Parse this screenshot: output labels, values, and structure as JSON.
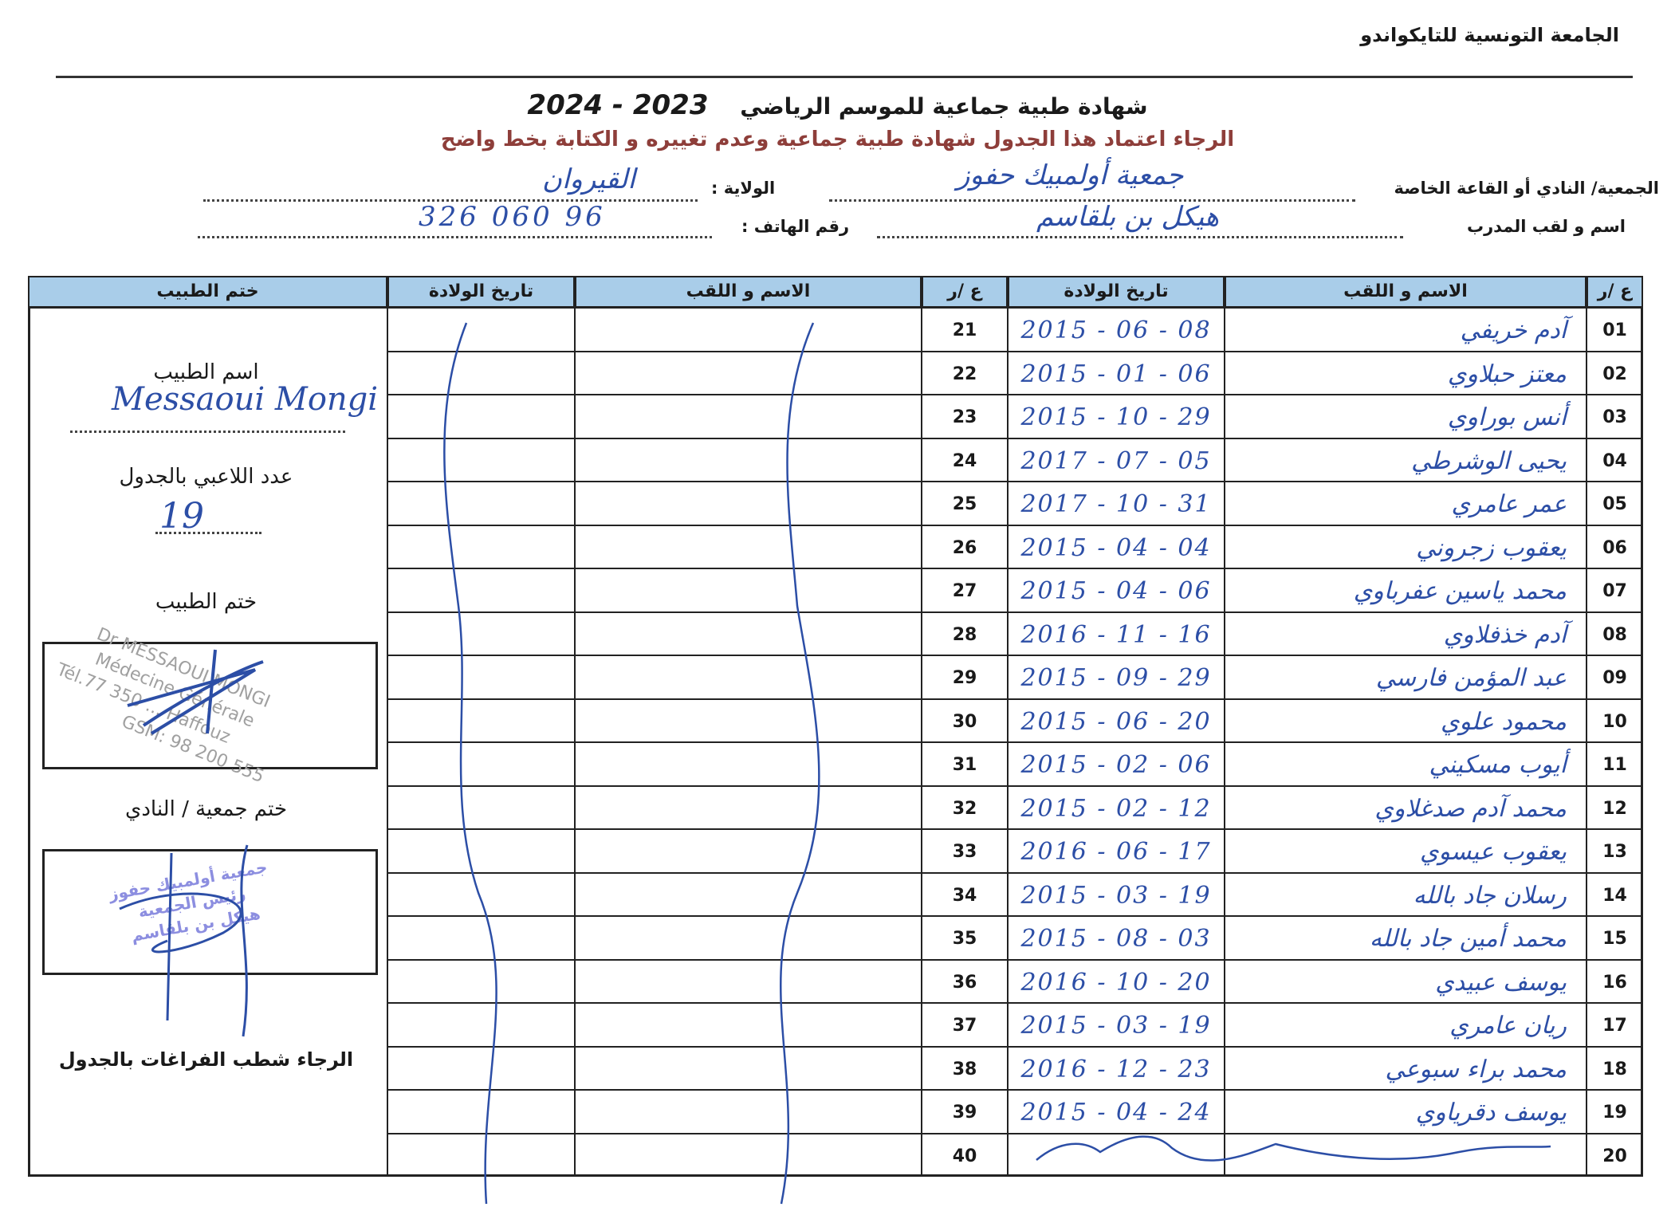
{
  "federation": "الجامعة التونسية للتايكواندو",
  "title": "شهادة طبية جماعية للموسم الرياضي",
  "season": "2023 - 2024",
  "subtitle": "الرجاء اعتماد هذا الجدول شهادة طبية جماعية وعدم تغييره و الكتابة بخط واضح",
  "fields": {
    "club_label": "الجمعية/ النادي أو القاعة الخاصة",
    "club_value": "جمعية أولمبيك حفوز",
    "wilaya_label": "الولاية :",
    "wilaya_value": "القيروان",
    "coach_label": "اسم و لقب المدرب",
    "coach_value": "هيكل بن بلقاسم",
    "phone_label": "رقم الهاتف :",
    "phone_value": "96 060 326"
  },
  "table": {
    "headers": {
      "number": "ع /ر",
      "name": "الاسم و اللقب",
      "dob": "تاريخ الولادة",
      "doctor_stamp": "ختم الطبيب"
    },
    "rows_left": [
      {
        "n": "01",
        "name": "آدم خريفي",
        "dob": "2015 - 06 - 08"
      },
      {
        "n": "02",
        "name": "معتز حبلاوي",
        "dob": "2015 - 01 - 06"
      },
      {
        "n": "03",
        "name": "أنس بوراوي",
        "dob": "2015 - 10 - 29"
      },
      {
        "n": "04",
        "name": "يحيى الوشرطي",
        "dob": "2017 - 07 - 05"
      },
      {
        "n": "05",
        "name": "عمر عامري",
        "dob": "2017 - 10 - 31"
      },
      {
        "n": "06",
        "name": "يعقوب زجروني",
        "dob": "2015 - 04 - 04"
      },
      {
        "n": "07",
        "name": "محمد ياسين عفرباوي",
        "dob": "2015 - 04 - 06"
      },
      {
        "n": "08",
        "name": "آدم خذفلاوي",
        "dob": "2016 - 11 - 16"
      },
      {
        "n": "09",
        "name": "عبد المؤمن فارسي",
        "dob": "2015 - 09 - 29"
      },
      {
        "n": "10",
        "name": "محمود علوي",
        "dob": "2015 - 06 - 20"
      },
      {
        "n": "11",
        "name": "أيوب مسكيني",
        "dob": "2015 - 02 - 06"
      },
      {
        "n": "12",
        "name": "محمد آدم صدغلاوي",
        "dob": "2015 - 02 - 12"
      },
      {
        "n": "13",
        "name": "يعقوب عيسوي",
        "dob": "2016 - 06 - 17"
      },
      {
        "n": "14",
        "name": "رسلان جاد بالله",
        "dob": "2015 - 03 - 19"
      },
      {
        "n": "15",
        "name": "محمد أمين جاد بالله",
        "dob": "2015 - 08 - 03"
      },
      {
        "n": "16",
        "name": "يوسف عبيدي",
        "dob": "2016 - 10 - 20"
      },
      {
        "n": "17",
        "name": "ريان عامري",
        "dob": "2015 - 03 - 19"
      },
      {
        "n": "18",
        "name": "محمد براء سبوعي",
        "dob": "2016 - 12 - 23"
      },
      {
        "n": "19",
        "name": "يوسف دقرياوي",
        "dob": "2015 - 04 - 24"
      },
      {
        "n": "20",
        "name": "",
        "dob": ""
      }
    ],
    "rows_right_numbers": [
      "21",
      "22",
      "23",
      "24",
      "25",
      "26",
      "27",
      "28",
      "29",
      "30",
      "31",
      "32",
      "33",
      "34",
      "35",
      "36",
      "37",
      "38",
      "39",
      "40"
    ]
  },
  "doctor_panel": {
    "doctor_name_label": "اسم الطبيب",
    "doctor_name_value": "Messaoui Mongi",
    "player_count_label": "عدد اللاعبي بالجدول",
    "player_count_value": "19",
    "doctor_stamp_label": "ختم الطبيب",
    "doctor_stamp_lines": [
      "Dr MESSAOUI MONGI",
      "Médecine Générale",
      "Tél.77 350 ... Haffouz",
      "GSM: 98 200 555"
    ],
    "club_stamp_label": "ختم جمعية / النادي",
    "club_stamp_lines": [
      "جمعية أولمبيك حفوز",
      "رئيس الجمعية",
      "هيكل بن بلقاسم"
    ],
    "footer_note": "الرجاء شطب الفراغات بالجدول"
  },
  "colors": {
    "header_bg": "#a9cde9",
    "ink": "#2c4ea6",
    "subtitle": "#8e3e3a"
  }
}
